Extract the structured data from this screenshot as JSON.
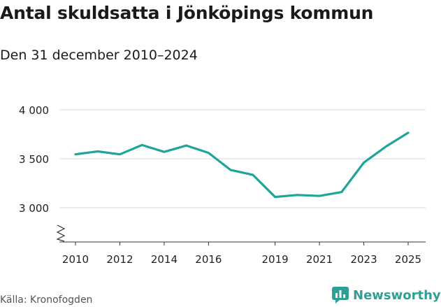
{
  "header": {
    "title": "Antal skuldsatta i Jönköpings kommun",
    "subtitle": "Den 31 december 2010–2024"
  },
  "footer": {
    "source": "Källa: Kronofogden",
    "brand": "Newsworthy"
  },
  "colors": {
    "line": "#1ea597",
    "grid": "#d9d9d9",
    "axis": "#333333",
    "brand": "#2f9f95"
  },
  "chart_data": {
    "type": "line",
    "title": "Antal skuldsatta i Jönköpings kommun",
    "subtitle": "Den 31 december 2010–2024",
    "xlabel": "",
    "ylabel": "",
    "ylim": [
      2750,
      4000
    ],
    "yticks": [
      3000,
      3500,
      4000
    ],
    "ytick_labels": [
      "3 000",
      "3 500",
      "4 000"
    ],
    "xticks": [
      2010,
      2012,
      2014,
      2016,
      2019,
      2021,
      2023,
      2025
    ],
    "xtick_labels": [
      "2010",
      "2012",
      "2014",
      "2016",
      "2019",
      "2021",
      "2023",
      "2025"
    ],
    "axis_break": true,
    "grid": true,
    "series": [
      {
        "name": "Antal skuldsatta",
        "x": [
          2010,
          2011,
          2012,
          2013,
          2014,
          2015,
          2016,
          2017,
          2018,
          2019,
          2020,
          2021,
          2022,
          2023,
          2024,
          2025
        ],
        "values": [
          3545,
          3575,
          3545,
          3640,
          3570,
          3635,
          3560,
          3385,
          3335,
          3110,
          3130,
          3120,
          3160,
          3460,
          3625,
          3765
        ]
      }
    ]
  }
}
